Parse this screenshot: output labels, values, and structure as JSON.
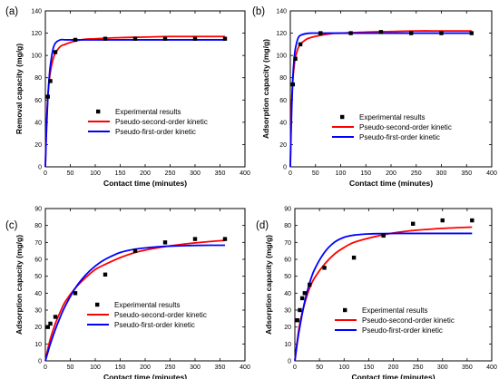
{
  "chart_data": [
    {
      "type": "scatter",
      "panel_label": "(a)",
      "xlabel": "Contact time (minutes)",
      "ylabel": "Removal capacity (mg/g)",
      "xlim": [
        0,
        400
      ],
      "ylim": [
        0,
        140
      ],
      "xticks": [
        0,
        50,
        100,
        150,
        200,
        250,
        300,
        350,
        400
      ],
      "yticks": [
        0,
        20,
        40,
        60,
        80,
        100,
        120,
        140
      ],
      "legend_position": "lower-right",
      "series": [
        {
          "name": "Experimental results",
          "kind": "points",
          "color": "#000000",
          "x": [
            5,
            10,
            20,
            60,
            120,
            180,
            240,
            300,
            360
          ],
          "y": [
            63,
            77,
            103,
            114,
            115,
            115,
            115,
            115,
            115
          ]
        },
        {
          "name": "Pseudo-second-order kinetic",
          "kind": "line",
          "color": "#ff0000",
          "x": [
            0,
            2,
            5,
            8,
            10,
            15,
            20,
            30,
            40,
            60,
            80,
            100,
            150,
            200,
            250,
            300,
            360
          ],
          "y": [
            0,
            35,
            63,
            78,
            85,
            96,
            102,
            108,
            110,
            113,
            114.5,
            115,
            116,
            116.5,
            117,
            117,
            117
          ]
        },
        {
          "name": "Pseudo-first-order kinetic",
          "kind": "line",
          "color": "#0000ff",
          "x": [
            0,
            2,
            5,
            8,
            10,
            15,
            20,
            30,
            40,
            60,
            80,
            100,
            150,
            200,
            250,
            300,
            360
          ],
          "y": [
            0,
            29,
            62,
            82,
            91,
            105,
            111,
            114,
            114,
            114,
            114,
            114,
            114,
            114,
            114,
            114,
            114
          ]
        }
      ]
    },
    {
      "type": "scatter",
      "panel_label": "(b)",
      "xlabel": "Contact time (minutes)",
      "ylabel": "Adsorption capacity (mg/g)",
      "xlim": [
        0,
        400
      ],
      "ylim": [
        0,
        140
      ],
      "xticks": [
        0,
        50,
        100,
        150,
        200,
        250,
        300,
        350,
        400
      ],
      "yticks": [
        0,
        20,
        40,
        60,
        80,
        100,
        120,
        140
      ],
      "legend_position": "lower-right",
      "series": [
        {
          "name": "Experimental results",
          "kind": "points",
          "color": "#000000",
          "x": [
            5,
            10,
            20,
            60,
            120,
            180,
            240,
            300,
            360
          ],
          "y": [
            74,
            97,
            110,
            120,
            120,
            121,
            120,
            120,
            120
          ]
        },
        {
          "name": "Pseudo-second-order kinetic",
          "kind": "line",
          "color": "#ff0000",
          "x": [
            0,
            2,
            5,
            8,
            10,
            15,
            20,
            30,
            40,
            60,
            80,
            100,
            150,
            200,
            250,
            300,
            360
          ],
          "y": [
            0,
            50,
            78,
            92,
            98,
            106,
            110,
            114,
            116,
            118,
            119.5,
            120,
            121,
            121.5,
            122,
            122,
            122
          ]
        },
        {
          "name": "Pseudo-first-order kinetic",
          "kind": "line",
          "color": "#0000ff",
          "x": [
            0,
            2,
            5,
            8,
            10,
            15,
            20,
            30,
            40,
            60,
            80,
            100,
            150,
            200,
            250,
            300,
            360
          ],
          "y": [
            0,
            40,
            80,
            99,
            106,
            115,
            118,
            119.5,
            120,
            120,
            120,
            120,
            120,
            120,
            120,
            120,
            120
          ]
        }
      ]
    },
    {
      "type": "scatter",
      "panel_label": "(c)",
      "xlabel": "Contact time (minutes)",
      "ylabel": "Adsorption capacity (mg/g)",
      "xlim": [
        0,
        400
      ],
      "ylim": [
        0,
        90
      ],
      "xticks": [
        0,
        50,
        100,
        150,
        200,
        250,
        300,
        350,
        400
      ],
      "yticks": [
        0,
        10,
        20,
        30,
        40,
        50,
        60,
        70,
        80,
        90
      ],
      "legend_position": "lower-right",
      "series": [
        {
          "name": "Experimental results",
          "kind": "points",
          "color": "#000000",
          "x": [
            5,
            10,
            20,
            60,
            120,
            180,
            240,
            300,
            360
          ],
          "y": [
            20,
            22,
            26,
            40,
            51,
            65,
            70,
            72,
            72
          ]
        },
        {
          "name": "Pseudo-second-order kinetic",
          "kind": "line",
          "color": "#ff0000",
          "x": [
            0,
            5,
            10,
            20,
            30,
            40,
            60,
            80,
            100,
            120,
            150,
            180,
            210,
            240,
            270,
            300,
            330,
            360
          ],
          "y": [
            0,
            7,
            13,
            22,
            29,
            35,
            43,
            49,
            54,
            57,
            61,
            64,
            66,
            67.5,
            68.7,
            69.7,
            70.5,
            71.2
          ]
        },
        {
          "name": "Pseudo-first-order kinetic",
          "kind": "line",
          "color": "#0000ff",
          "x": [
            0,
            5,
            10,
            20,
            30,
            40,
            60,
            80,
            100,
            120,
            150,
            180,
            210,
            240,
            270,
            300,
            330,
            360
          ],
          "y": [
            0,
            5,
            10,
            18.5,
            26,
            32.5,
            43,
            50.5,
            56,
            60,
            64,
            66,
            67,
            67.7,
            68,
            68.2,
            68.3,
            68.3
          ]
        }
      ]
    },
    {
      "type": "scatter",
      "panel_label": "(d)",
      "xlabel": "Contact time (minutes)",
      "ylabel": "Adsorption capacity (mg/g)",
      "xlim": [
        0,
        400
      ],
      "ylim": [
        0,
        90
      ],
      "xticks": [
        0,
        50,
        100,
        150,
        200,
        250,
        300,
        350,
        400
      ],
      "yticks": [
        0,
        10,
        20,
        30,
        40,
        50,
        60,
        70,
        80,
        90
      ],
      "legend_position": "lower-right",
      "series": [
        {
          "name": "Experimental results",
          "kind": "points",
          "color": "#000000",
          "x": [
            5,
            10,
            15,
            20,
            30,
            60,
            120,
            180,
            240,
            300,
            360
          ],
          "y": [
            24,
            30,
            37,
            40,
            45,
            55,
            61,
            74,
            81,
            83,
            83
          ]
        },
        {
          "name": "Pseudo-second-order kinetic",
          "kind": "line",
          "color": "#ff0000",
          "x": [
            0,
            5,
            10,
            20,
            30,
            40,
            60,
            80,
            100,
            120,
            150,
            180,
            210,
            240,
            270,
            300,
            330,
            360
          ],
          "y": [
            0,
            12,
            22,
            34,
            43,
            49,
            57,
            63,
            67,
            70,
            72.5,
            74.5,
            76,
            77,
            77.7,
            78.3,
            78.7,
            79
          ]
        },
        {
          "name": "Pseudo-first-order kinetic",
          "kind": "line",
          "color": "#0000ff",
          "x": [
            0,
            5,
            10,
            20,
            30,
            40,
            60,
            80,
            100,
            120,
            150,
            180,
            210,
            240,
            270,
            300,
            330,
            360
          ],
          "y": [
            0,
            11,
            20,
            35,
            46,
            54,
            64,
            70,
            73,
            74.3,
            75,
            75.2,
            75.3,
            75.3,
            75.3,
            75.3,
            75.3,
            75.3
          ]
        }
      ]
    }
  ]
}
